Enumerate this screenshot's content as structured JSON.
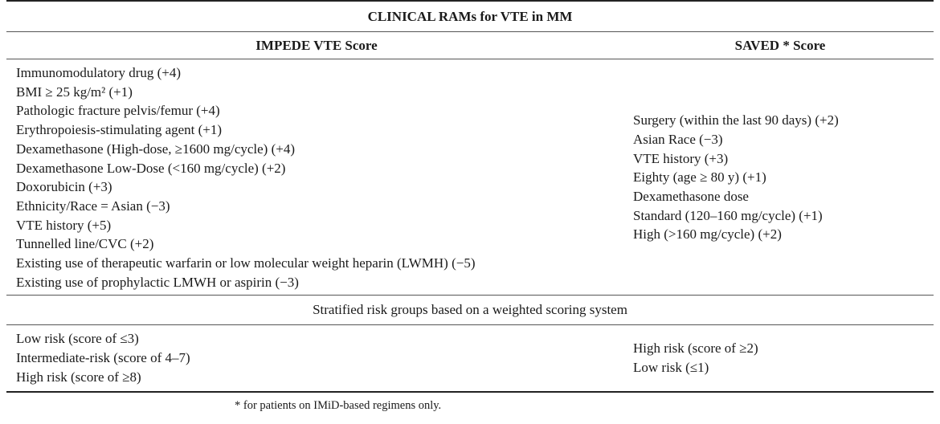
{
  "table": {
    "title": "CLINICAL RAMs for VTE in MM",
    "col1_header": "IMPEDE VTE Score",
    "col2_header": "SAVED * Score",
    "impede_factors": [
      "Immunomodulatory drug (+4)",
      "BMI ≥ 25 kg/m² (+1)",
      "Pathologic fracture pelvis/femur (+4)",
      "Erythropoiesis-stimulating agent (+1)",
      "Dexamethasone (High-dose, ≥1600 mg/cycle) (+4)",
      "Dexamethasone Low-Dose (<160 mg/cycle) (+2)",
      "Doxorubicin (+3)",
      "Ethnicity/Race = Asian (−3)",
      "VTE history (+5)",
      "Tunnelled line/CVC (+2)",
      "Existing use of therapeutic warfarin or low molecular weight heparin (LWMH) (−5)",
      "Existing use of prophylactic LMWH or aspirin (−3)"
    ],
    "saved_factors": [
      "Surgery (within the last 90 days) (+2)",
      "Asian Race (−3)",
      "VTE history (+3)",
      "Eighty (age ≥ 80 y) (+1)",
      "Dexamethasone dose",
      "Standard (120–160 mg/cycle) (+1)",
      "High (>160 mg/cycle) (+2)"
    ],
    "strat_header": "Stratified risk groups based on a weighted scoring system",
    "impede_risk": [
      "Low risk (score of ≤3)",
      "Intermediate-risk (score of 4–7)",
      "High risk (score of ≥8)"
    ],
    "saved_risk": [
      "High risk (score of ≥2)",
      "Low risk (≤1)"
    ]
  },
  "footnote": "* for patients on IMiD-based regimens only."
}
